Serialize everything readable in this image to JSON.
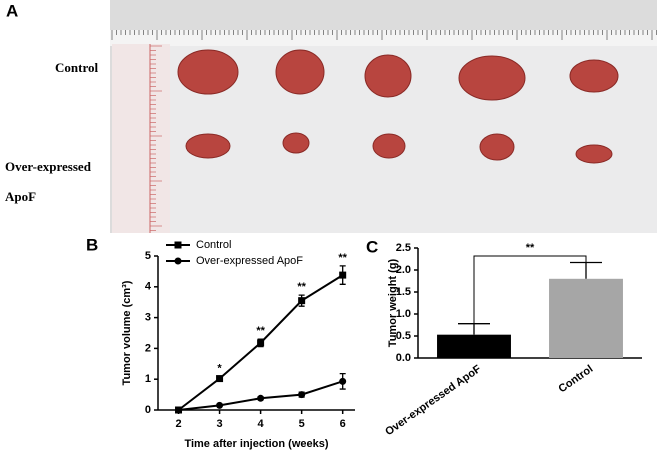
{
  "panel_labels": [
    "A",
    "B",
    "C"
  ],
  "photo_rows": [
    "Control",
    "Over-expressed ApoF"
  ],
  "chart_data": [
    {
      "type": "line",
      "xlabel": "Time after injection (weeks)",
      "ylabel": "Tumor volume (cm³)",
      "x": [
        2,
        3,
        4,
        5,
        6
      ],
      "xlim": [
        1.5,
        6.3
      ],
      "xticks": [
        2,
        3,
        4,
        5,
        6
      ],
      "ylim": [
        0,
        5
      ],
      "yticks": [
        0,
        1,
        2,
        3,
        4,
        5
      ],
      "series": [
        {
          "name": "Control",
          "color": "#000000",
          "marker": "square",
          "values": [
            0,
            1.02,
            2.18,
            3.55,
            4.38
          ],
          "errors": [
            0.02,
            0.06,
            0.12,
            0.18,
            0.3
          ]
        },
        {
          "name": "Over-expressed ApoF",
          "color": "#000000",
          "marker": "circle",
          "values": [
            0,
            0.15,
            0.38,
            0.5,
            0.93
          ],
          "errors": [
            0.02,
            0.03,
            0.05,
            0.08,
            0.25
          ]
        }
      ],
      "annotations": [
        {
          "x": 3,
          "text": "*"
        },
        {
          "x": 4,
          "text": "**"
        },
        {
          "x": 5,
          "text": "**"
        },
        {
          "x": 6,
          "text": "**"
        }
      ],
      "legend": "upper left"
    },
    {
      "type": "bar",
      "ylabel": "Tumor weight (g)",
      "categories": [
        "Over-expressed ApoF",
        "Control"
      ],
      "values": [
        0.53,
        1.8
      ],
      "errors": [
        0.25,
        0.37
      ],
      "colors": [
        "#000000",
        "#a6a6a6"
      ],
      "ylim": [
        0,
        2.5
      ],
      "yticks": [
        {
          "value": 0,
          "label": "0.0"
        },
        {
          "value": 0.5,
          "label": "0.5"
        },
        {
          "value": 1,
          "label": "1.0"
        },
        {
          "value": 1.5,
          "label": "1.5"
        },
        {
          "value": 2,
          "label": "2.0"
        },
        {
          "value": 2.5,
          "label": "2.5"
        }
      ],
      "annotation": "**"
    }
  ]
}
